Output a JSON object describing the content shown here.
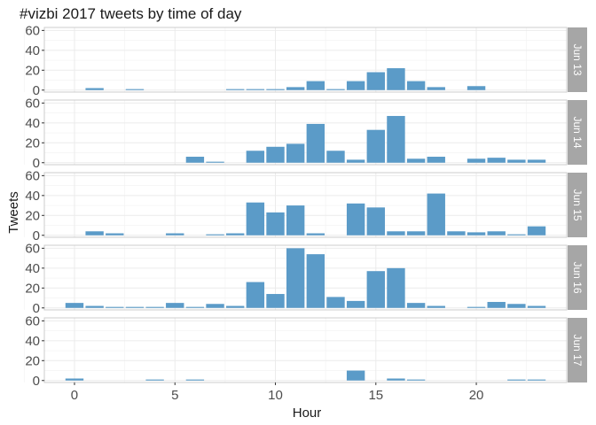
{
  "chart_data": {
    "type": "bar",
    "title": "#vizbi 2017 tweets by time of day",
    "xlabel": "Hour",
    "ylabel": "Tweets",
    "xlim": [
      -1.5,
      24.5
    ],
    "ylim": [
      -2,
      63
    ],
    "xticks": [
      0,
      5,
      10,
      15,
      20
    ],
    "yticks": [
      0,
      20,
      40,
      60
    ],
    "bar_color": "#5b9bc8",
    "panel_border_color": "#cccccc",
    "grid_color": "#ebebeb",
    "strip_color": "#a6a6a6",
    "grid": true,
    "panels": [
      {
        "label": "Jun 13",
        "x": [
          1,
          3,
          8,
          9,
          10,
          11,
          12,
          13,
          14,
          15,
          16,
          17,
          18,
          20
        ],
        "values": [
          2,
          1,
          1,
          1,
          1,
          3,
          9,
          1,
          9,
          18,
          22,
          9,
          3,
          4
        ]
      },
      {
        "label": "Jun 14",
        "x": [
          6,
          7,
          9,
          10,
          11,
          12,
          13,
          14,
          15,
          16,
          17,
          18,
          20,
          21,
          22,
          23
        ],
        "values": [
          6,
          1,
          12,
          16,
          19,
          39,
          12,
          3,
          33,
          47,
          4,
          6,
          4,
          5,
          3,
          3
        ]
      },
      {
        "label": "Jun 15",
        "x": [
          1,
          2,
          5,
          7,
          8,
          9,
          10,
          11,
          12,
          14,
          15,
          16,
          17,
          18,
          19,
          20,
          21,
          22,
          23
        ],
        "values": [
          4,
          2,
          2,
          1,
          2,
          33,
          23,
          30,
          2,
          32,
          28,
          4,
          4,
          42,
          4,
          3,
          4,
          1,
          9
        ]
      },
      {
        "label": "Jun 16",
        "x": [
          0,
          1,
          2,
          3,
          4,
          5,
          6,
          7,
          8,
          9,
          10,
          11,
          12,
          13,
          14,
          15,
          16,
          17,
          18,
          20,
          21,
          22,
          23
        ],
        "values": [
          5,
          2,
          1,
          1,
          1,
          5,
          1,
          4,
          2,
          26,
          14,
          60,
          54,
          11,
          7,
          37,
          40,
          5,
          2,
          1,
          6,
          4,
          2
        ]
      },
      {
        "label": "Jun 17",
        "x": [
          0,
          4,
          6,
          14,
          16,
          17,
          22,
          23
        ],
        "values": [
          2,
          1,
          1,
          10,
          2,
          1,
          1,
          1
        ]
      }
    ]
  }
}
